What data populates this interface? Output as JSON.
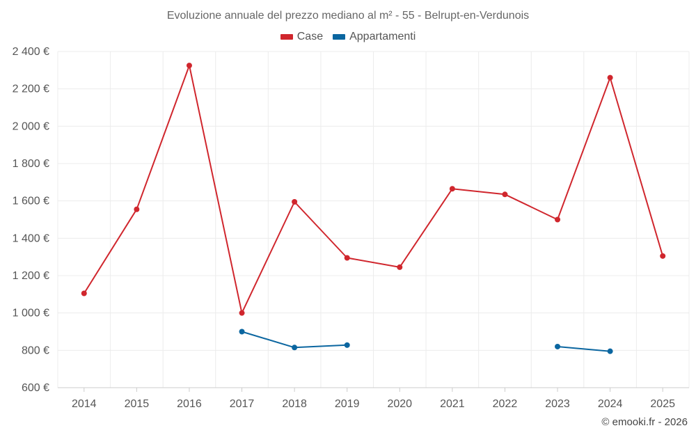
{
  "chart_data": {
    "type": "line",
    "title": "Evoluzione annuale del prezzo mediano al m² - 55 - Belrupt-en-Verdunois",
    "categories": [
      "2014",
      "2015",
      "2016",
      "2017",
      "2018",
      "2019",
      "2020",
      "2021",
      "2022",
      "2023",
      "2024",
      "2025"
    ],
    "ylim": [
      600,
      2400
    ],
    "yticks": [
      600,
      800,
      1000,
      1200,
      1400,
      1600,
      1800,
      2000,
      2200,
      2400
    ],
    "ytick_labels": [
      "600 €",
      "800 €",
      "1 000 €",
      "1 200 €",
      "1 400 €",
      "1 600 €",
      "1 800 €",
      "2 000 €",
      "2 200 €",
      "2 400 €"
    ],
    "grid": true,
    "legend_position": "top-center",
    "series": [
      {
        "name": "Case",
        "color": "#d0262d",
        "values": [
          1105,
          1555,
          2325,
          1000,
          1595,
          1295,
          1245,
          1665,
          1635,
          1500,
          2260,
          1305
        ]
      },
      {
        "name": "Appartamenti",
        "color": "#0b66a0",
        "values": [
          null,
          null,
          null,
          900,
          815,
          828,
          null,
          null,
          null,
          820,
          795,
          null
        ]
      }
    ]
  },
  "footer": {
    "copyright": "© emooki.fr - 2026"
  }
}
